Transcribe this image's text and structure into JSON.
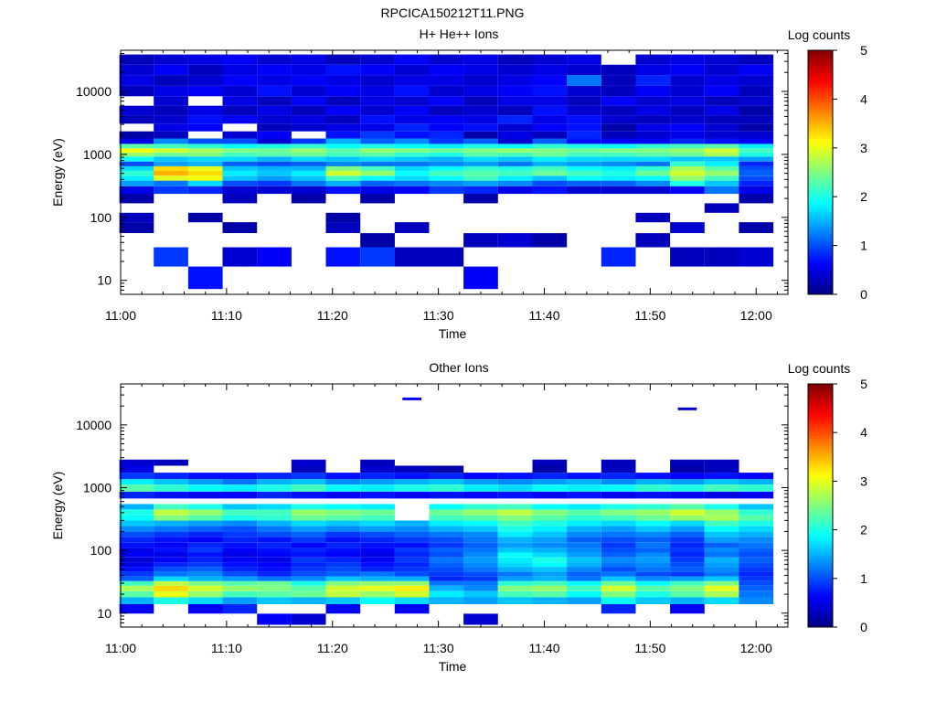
{
  "figure_title": "RPCICA150212T11.PNG",
  "chart_data": [
    {
      "type": "heatmap",
      "title": "H+ He++ Ions",
      "xlabel": "Time",
      "ylabel": "Energy (eV)",
      "xticks": [
        "11:00",
        "11:10",
        "11:20",
        "11:30",
        "11:40",
        "11:50",
        "12:00"
      ],
      "xlim": [
        "11:00",
        "12:03"
      ],
      "yscale": "log",
      "yticks": [
        "10",
        "100",
        "1000",
        "10000"
      ],
      "ylim": [
        6,
        45000
      ],
      "colorbar": {
        "label": "Log counts",
        "range": [
          0,
          5
        ],
        "ticks": [
          "0",
          "1",
          "2",
          "3",
          "4",
          "5"
        ],
        "colormap": "jet"
      },
      "time_columns": [
        "11:01:30",
        "11:04:45",
        "11:08:00",
        "11:11:15",
        "11:14:30",
        "11:17:45",
        "11:21:00",
        "11:24:15",
        "11:27:30",
        "11:30:45",
        "11:34:00",
        "11:37:15",
        "11:40:30",
        "11:43:45",
        "11:47:00",
        "11:50:15",
        "11:53:30",
        "11:56:45",
        "12:00:00"
      ],
      "energy_bins_eV": [
        11,
        25,
        45,
        70,
        100,
        140,
        200,
        280,
        350,
        420,
        500,
        600,
        700,
        850,
        1000,
        1150,
        1350,
        1600,
        2000,
        2700,
        3500,
        5000,
        7000,
        10000,
        15000,
        22000,
        32000
      ],
      "log_counts": [
        [
          0,
          0,
          0.7,
          0,
          0,
          0,
          0,
          0,
          0,
          0,
          0.6,
          0,
          0,
          0,
          0,
          0,
          0,
          0,
          0
        ],
        [
          0,
          0.9,
          0,
          0.4,
          0.6,
          0,
          0.7,
          0.9,
          0.3,
          0.3,
          0,
          0,
          0,
          0,
          0.8,
          0,
          0.3,
          0.3,
          0.4
        ],
        [
          0,
          0,
          0,
          0,
          0,
          0,
          0,
          0.2,
          0,
          0,
          0.3,
          0.4,
          0.2,
          0,
          0,
          0.3,
          0,
          0,
          0
        ],
        [
          0.2,
          0,
          0,
          0.2,
          0,
          0,
          0.3,
          0,
          0.3,
          0,
          0,
          0,
          0,
          0,
          0,
          0,
          0.4,
          0,
          0.2
        ],
        [
          0.3,
          0,
          0.2,
          0,
          0,
          0,
          0.2,
          0,
          0,
          0,
          0,
          0,
          0,
          0,
          0,
          0.3,
          0,
          0,
          0
        ],
        [
          0,
          0,
          0,
          0,
          0,
          0,
          0,
          0,
          0,
          0,
          0,
          0,
          0,
          0,
          0,
          0,
          0,
          0.3,
          0
        ],
        [
          0.2,
          0,
          0,
          0.3,
          0,
          0.2,
          0,
          0.2,
          0,
          0,
          0.2,
          0,
          0,
          0,
          0,
          0,
          0,
          0,
          0.2
        ],
        [
          0.5,
          0.9,
          0.8,
          0.4,
          0.4,
          0.4,
          0.7,
          0.5,
          0.6,
          0.9,
          0.8,
          0.5,
          0.7,
          0.4,
          0.4,
          0.4,
          0.6,
          1.2,
          0.5
        ],
        [
          1.4,
          1.2,
          1.7,
          1.0,
          0.9,
          1.2,
          1.5,
          1.1,
          1.2,
          1.3,
          1.4,
          1.3,
          1.0,
          1.1,
          1.1,
          1.3,
          2.0,
          1.6,
          0.8
        ],
        [
          1.8,
          3.0,
          3.1,
          1.6,
          1.4,
          1.6,
          2.2,
          1.9,
          1.7,
          1.9,
          2.2,
          1.8,
          1.6,
          1.9,
          1.8,
          1.9,
          2.6,
          2.2,
          1.0
        ],
        [
          2.1,
          3.5,
          3.3,
          1.8,
          1.6,
          1.8,
          2.9,
          2.6,
          1.9,
          2.2,
          2.3,
          2.2,
          2.4,
          2.2,
          2.0,
          2.4,
          2.9,
          2.6,
          1.1
        ],
        [
          1.7,
          3.3,
          3.0,
          1.6,
          1.5,
          1.5,
          2.5,
          2.2,
          1.7,
          1.9,
          2.1,
          2.0,
          2.2,
          1.9,
          1.8,
          2.1,
          2.7,
          2.3,
          1.0
        ],
        [
          1.0,
          1.4,
          1.5,
          1.1,
          1.0,
          1.1,
          1.3,
          1.2,
          1.2,
          1.3,
          1.4,
          1.2,
          1.5,
          1.4,
          1.3,
          1.2,
          2.1,
          1.8,
          0.8
        ],
        [
          1.9,
          1.6,
          1.7,
          1.7,
          1.5,
          1.7,
          1.6,
          1.7,
          1.6,
          1.5,
          1.7,
          1.6,
          1.8,
          1.7,
          1.7,
          1.7,
          1.6,
          1.6,
          1.4
        ],
        [
          2.6,
          2.4,
          2.5,
          2.2,
          2.3,
          2.4,
          2.2,
          2.3,
          2.1,
          2.0,
          2.3,
          2.2,
          2.4,
          2.2,
          2.2,
          2.3,
          2.4,
          2.7,
          2.0
        ],
        [
          3.1,
          2.9,
          2.7,
          2.5,
          2.4,
          2.6,
          2.3,
          2.6,
          2.5,
          2.4,
          2.5,
          2.6,
          2.5,
          2.4,
          2.5,
          2.5,
          2.6,
          2.9,
          2.2
        ],
        [
          2.3,
          2.2,
          2.1,
          1.9,
          2.0,
          2.1,
          1.9,
          2.0,
          1.9,
          1.8,
          2.0,
          1.9,
          2.1,
          2.0,
          1.9,
          2.1,
          2.2,
          2.3,
          1.8
        ],
        [
          0.5,
          1.3,
          1.0,
          1.0,
          0.4,
          0.9,
          1.5,
          1.1,
          1.3,
          0.9,
          1.1,
          0.4,
          1.1,
          0.7,
          0.6,
          0.6,
          0.8,
          0.7,
          0.6
        ],
        [
          0.2,
          0.3,
          0,
          0.4,
          0.6,
          0,
          0.7,
          0.9,
          0.7,
          0.8,
          0.2,
          0.5,
          0.3,
          0.8,
          0.3,
          0.4,
          0.5,
          0.4,
          0.4
        ],
        [
          0,
          0.5,
          0.6,
          0,
          0.3,
          0.4,
          0.5,
          0.5,
          0.8,
          0.6,
          0.7,
          0.4,
          0.6,
          0.7,
          0.2,
          0.5,
          0.6,
          0.4,
          0.2
        ],
        [
          0.3,
          0.4,
          0.7,
          0.6,
          0.4,
          0.5,
          0.3,
          0.7,
          0.5,
          0.6,
          0.5,
          0.8,
          0.5,
          0.7,
          0.4,
          0.3,
          0.4,
          0.3,
          0.3
        ],
        [
          0.4,
          0.3,
          0.5,
          0.3,
          0.5,
          0.3,
          0.6,
          0.4,
          0.6,
          0.3,
          0.4,
          0.3,
          0.7,
          0.4,
          0.3,
          0.5,
          0.3,
          0.5,
          0.2
        ],
        [
          0,
          0.4,
          0,
          0.5,
          0.3,
          0.6,
          0.3,
          0.5,
          0.4,
          0.6,
          0.3,
          0.5,
          0.5,
          0.3,
          0.6,
          0.4,
          0.5,
          0.3,
          0.4
        ],
        [
          0.3,
          0.5,
          0.6,
          0.4,
          0.7,
          0.4,
          0.6,
          0.5,
          0.7,
          0.4,
          0.5,
          0.6,
          0.7,
          0.4,
          0.3,
          0.6,
          0.4,
          0.6,
          0.3
        ],
        [
          0.5,
          0.3,
          0.4,
          0.6,
          0.5,
          0.6,
          0.5,
          0.4,
          0.5,
          0.5,
          0.4,
          0.5,
          0.6,
          1.2,
          0.3,
          0.8,
          0.4,
          0.5,
          0.4
        ],
        [
          0.4,
          0.6,
          0.3,
          0.5,
          0.6,
          0.5,
          0.7,
          0.6,
          0.4,
          0.6,
          0.5,
          0.4,
          0.5,
          0.4,
          0.3,
          0.5,
          0.6,
          0.4,
          0.6
        ],
        [
          0.3,
          0.4,
          0.5,
          0.6,
          0.4,
          0.5,
          0.3,
          0.4,
          0.6,
          0.4,
          0.5,
          0.3,
          0.4,
          0.5,
          0,
          0.4,
          0.5,
          0.4,
          0.3
        ]
      ]
    },
    {
      "type": "heatmap",
      "title": "Other Ions",
      "xlabel": "Time",
      "ylabel": "Energy (eV)",
      "xticks": [
        "11:00",
        "11:10",
        "11:20",
        "11:30",
        "11:40",
        "11:50",
        "12:00"
      ],
      "xlim": [
        "11:00",
        "12:03"
      ],
      "yscale": "log",
      "yticks": [
        "10",
        "100",
        "1000",
        "10000"
      ],
      "ylim": [
        6,
        45000
      ],
      "colorbar": {
        "label": "Log counts",
        "range": [
          0,
          5
        ],
        "ticks": [
          "0",
          "1",
          "2",
          "3",
          "4",
          "5"
        ],
        "colormap": "jet"
      },
      "time_columns": [
        "11:01:30",
        "11:04:45",
        "11:08:00",
        "11:11:15",
        "11:14:30",
        "11:17:45",
        "11:21:00",
        "11:24:15",
        "11:27:30",
        "11:30:45",
        "11:34:00",
        "11:37:15",
        "11:40:30",
        "11:43:45",
        "11:47:00",
        "11:50:15",
        "11:53:30",
        "11:56:45",
        "12:00:00"
      ],
      "energy_bins_eV": [
        8,
        12,
        16,
        20,
        25,
        30,
        35,
        42,
        50,
        60,
        70,
        85,
        100,
        120,
        150,
        180,
        220,
        270,
        330,
        400,
        500,
        600,
        750,
        1000,
        1250,
        1500,
        2000,
        2500
      ],
      "log_counts": [
        [
          0,
          0,
          0,
          0,
          0.6,
          0.4,
          0,
          0,
          0,
          0,
          0.4,
          0,
          0,
          0,
          0,
          0,
          0,
          0,
          0
        ],
        [
          0.6,
          0,
          0.6,
          0.8,
          0,
          0,
          0.6,
          0,
          0.6,
          0,
          0,
          0,
          0,
          0,
          0.8,
          0,
          0.6,
          0,
          0
        ],
        [
          1.5,
          2.0,
          1.7,
          1.4,
          1.6,
          1.5,
          1.6,
          1.9,
          1.7,
          1.5,
          1.4,
          1.6,
          1.5,
          1.4,
          1.9,
          1.6,
          1.5,
          1.7,
          1.3
        ],
        [
          2.3,
          3.0,
          2.6,
          2.2,
          2.3,
          2.4,
          2.8,
          2.6,
          2.9,
          1.8,
          1.6,
          2.2,
          2.3,
          1.9,
          2.5,
          2.0,
          2.3,
          2.7,
          1.2
        ],
        [
          2.7,
          3.3,
          2.9,
          2.6,
          2.5,
          2.3,
          2.9,
          3.0,
          3.2,
          1.5,
          1.3,
          2.5,
          2.6,
          2.2,
          2.9,
          2.3,
          2.5,
          3.0,
          1.1
        ],
        [
          2.2,
          2.8,
          2.5,
          2.3,
          2.4,
          2.0,
          2.5,
          2.6,
          2.6,
          1.2,
          1.2,
          2.1,
          2.2,
          1.9,
          2.4,
          1.9,
          2.2,
          2.5,
          1.0
        ],
        [
          1.1,
          1.7,
          1.5,
          1.4,
          1.2,
          1.3,
          1.6,
          1.5,
          1.5,
          0.8,
          0.9,
          1.4,
          1.5,
          1.2,
          1.6,
          1.3,
          1.4,
          1.6,
          0.9
        ],
        [
          0.9,
          1.2,
          1.3,
          1.0,
          0.8,
          1.0,
          1.1,
          1.2,
          1.0,
          0.9,
          1.0,
          1.2,
          1.4,
          1.1,
          1.2,
          1.0,
          0.9,
          1.2,
          0.8
        ],
        [
          0.7,
          1.0,
          1.1,
          0.8,
          0.7,
          0.9,
          1.0,
          0.8,
          0.9,
          1.0,
          1.2,
          1.5,
          1.6,
          1.3,
          1.0,
          1.2,
          1.1,
          1.3,
          0.9
        ],
        [
          0.5,
          0.8,
          0.9,
          0.7,
          0.6,
          0.8,
          0.9,
          0.7,
          0.8,
          1.1,
          1.3,
          1.7,
          1.9,
          1.5,
          1.2,
          1.3,
          1.0,
          1.4,
          1.0
        ],
        [
          0.4,
          0.6,
          0.8,
          0.6,
          0.5,
          0.9,
          0.8,
          0.6,
          0.9,
          1.2,
          1.4,
          1.8,
          2.0,
          1.6,
          1.3,
          1.4,
          0.9,
          1.5,
          1.1
        ],
        [
          0.6,
          0.5,
          0.7,
          0.5,
          0.6,
          0.7,
          0.6,
          0.5,
          0.8,
          1.0,
          1.3,
          1.9,
          1.7,
          1.4,
          1.1,
          1.3,
          0.8,
          1.2,
          1.0
        ],
        [
          0.5,
          0.7,
          0.9,
          0.6,
          0.7,
          0.8,
          0.7,
          0.6,
          0.9,
          1.1,
          1.2,
          1.6,
          1.5,
          1.3,
          1.0,
          1.1,
          0.9,
          1.3,
          1.1
        ],
        [
          0.7,
          0.6,
          0.8,
          0.7,
          0.8,
          0.6,
          0.8,
          0.7,
          0.7,
          0.9,
          1.1,
          1.4,
          1.3,
          1.2,
          0.9,
          1.2,
          0.8,
          1.1,
          1.2
        ],
        [
          0.8,
          0.7,
          0.6,
          0.8,
          0.7,
          0.9,
          0.7,
          0.8,
          0.9,
          1.0,
          1.2,
          1.5,
          1.4,
          1.1,
          1.0,
          1.1,
          0.9,
          1.4,
          1.3
        ],
        [
          1.0,
          0.9,
          0.8,
          0.9,
          1.0,
          1.1,
          0.9,
          1.0,
          1.1,
          1.2,
          1.3,
          1.8,
          1.6,
          1.3,
          1.2,
          1.3,
          1.1,
          1.6,
          1.5
        ],
        [
          1.3,
          1.2,
          1.1,
          1.0,
          1.2,
          1.4,
          1.3,
          1.4,
          1.3,
          1.5,
          1.6,
          2.0,
          1.8,
          1.5,
          1.4,
          1.6,
          1.4,
          1.9,
          1.7
        ],
        [
          1.6,
          1.5,
          1.4,
          1.3,
          1.5,
          1.7,
          1.6,
          1.7,
          1.5,
          1.8,
          1.9,
          2.2,
          2.0,
          1.8,
          1.7,
          1.9,
          1.7,
          2.2,
          2.0
        ],
        [
          1.9,
          2.5,
          2.3,
          2.0,
          2.1,
          2.4,
          2.3,
          2.2,
          0,
          2.2,
          2.3,
          2.5,
          2.3,
          2.1,
          2.2,
          2.4,
          2.6,
          2.7,
          2.3
        ],
        [
          2.0,
          2.8,
          2.6,
          2.2,
          2.2,
          2.6,
          2.5,
          2.4,
          0,
          2.4,
          2.6,
          2.8,
          2.5,
          2.3,
          2.5,
          2.6,
          2.9,
          2.6,
          2.1
        ],
        [
          1.5,
          2.2,
          2.0,
          1.6,
          1.7,
          2.0,
          1.9,
          1.8,
          0,
          1.9,
          2.1,
          2.2,
          1.9,
          1.8,
          2.0,
          2.1,
          2.3,
          2.0,
          1.6
        ],
        [
          0,
          0,
          0,
          0,
          0,
          0,
          0,
          0,
          0,
          0,
          0,
          0,
          0,
          0,
          0,
          0,
          0,
          0,
          0
        ],
        [
          0.8,
          0.7,
          0.6,
          0.6,
          0.8,
          0.7,
          0.6,
          0.7,
          0.6,
          0.7,
          0.6,
          0.7,
          0.6,
          0.7,
          0.6,
          0.7,
          0.6,
          0.5,
          0.6
        ],
        [
          2.3,
          2.1,
          1.9,
          1.8,
          2.0,
          2.2,
          1.9,
          1.8,
          2.0,
          2.1,
          1.8,
          1.7,
          1.9,
          1.8,
          1.9,
          2.1,
          2.0,
          2.2,
          2.1
        ],
        [
          1.8,
          1.6,
          1.4,
          1.2,
          1.5,
          1.6,
          1.3,
          1.4,
          1.5,
          1.6,
          1.4,
          1.3,
          1.4,
          1.5,
          1.3,
          1.5,
          1.4,
          1.6,
          1.5
        ],
        [
          0.9,
          0.8,
          0.7,
          0.7,
          0.8,
          0.9,
          0.7,
          0.8,
          0.7,
          0.8,
          0.6,
          0.7,
          0.8,
          0.7,
          0.8,
          0.7,
          0.6,
          0.7,
          0.6
        ],
        [
          0.5,
          0,
          0,
          0,
          0,
          0.3,
          0,
          0.4,
          0.3,
          0.2,
          0,
          0,
          0.2,
          0,
          0.3,
          0,
          0.2,
          0.3,
          0
        ],
        [
          0.4,
          0.3,
          0,
          0,
          0,
          0.4,
          0,
          0.3,
          0,
          0,
          0,
          0,
          0.3,
          0,
          0.3,
          0,
          0.3,
          0.3,
          0
        ]
      ],
      "extra_cells": [
        {
          "time": "11:27:30",
          "energy_eV": 26000,
          "log_counts": 0.6
        },
        {
          "time": "11:53:30",
          "energy_eV": 18000,
          "log_counts": 0.4
        }
      ]
    }
  ]
}
